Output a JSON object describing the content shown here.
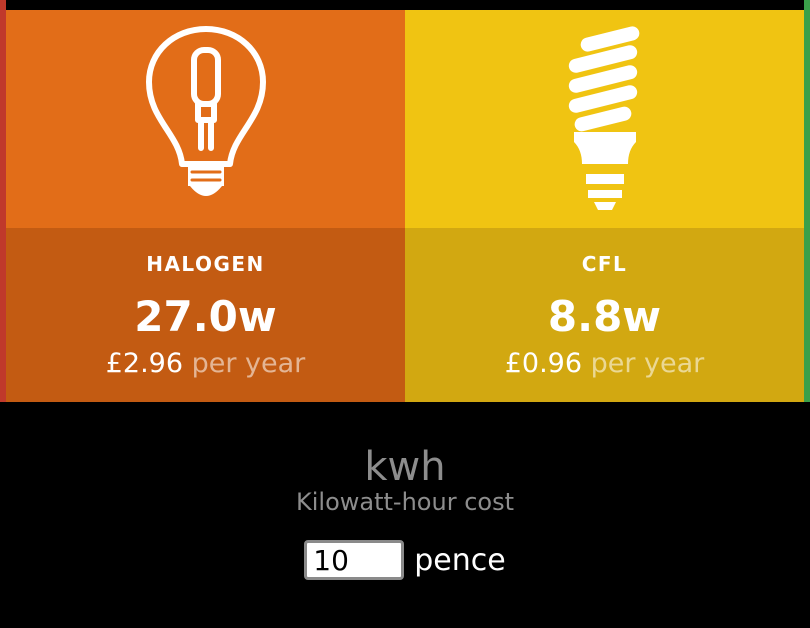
{
  "cards": [
    {
      "name": "HALOGEN",
      "watts": "27.0w",
      "amount": "£2.96",
      "per": "per year",
      "icon": "halogen-bulb-icon"
    },
    {
      "name": "CFL",
      "watts": "8.8w",
      "amount": "£0.96",
      "per": "per year",
      "icon": "cfl-bulb-icon"
    }
  ],
  "rate": {
    "title": "kwh",
    "subtitle": "Kilowatt-hour cost",
    "value": "10",
    "unit": "pence"
  },
  "colors": {
    "halogen_top": "#e26d18",
    "halogen_bottom": "#c35b12",
    "cfl_top": "#f0c412",
    "cfl_bottom": "#d2a811"
  }
}
